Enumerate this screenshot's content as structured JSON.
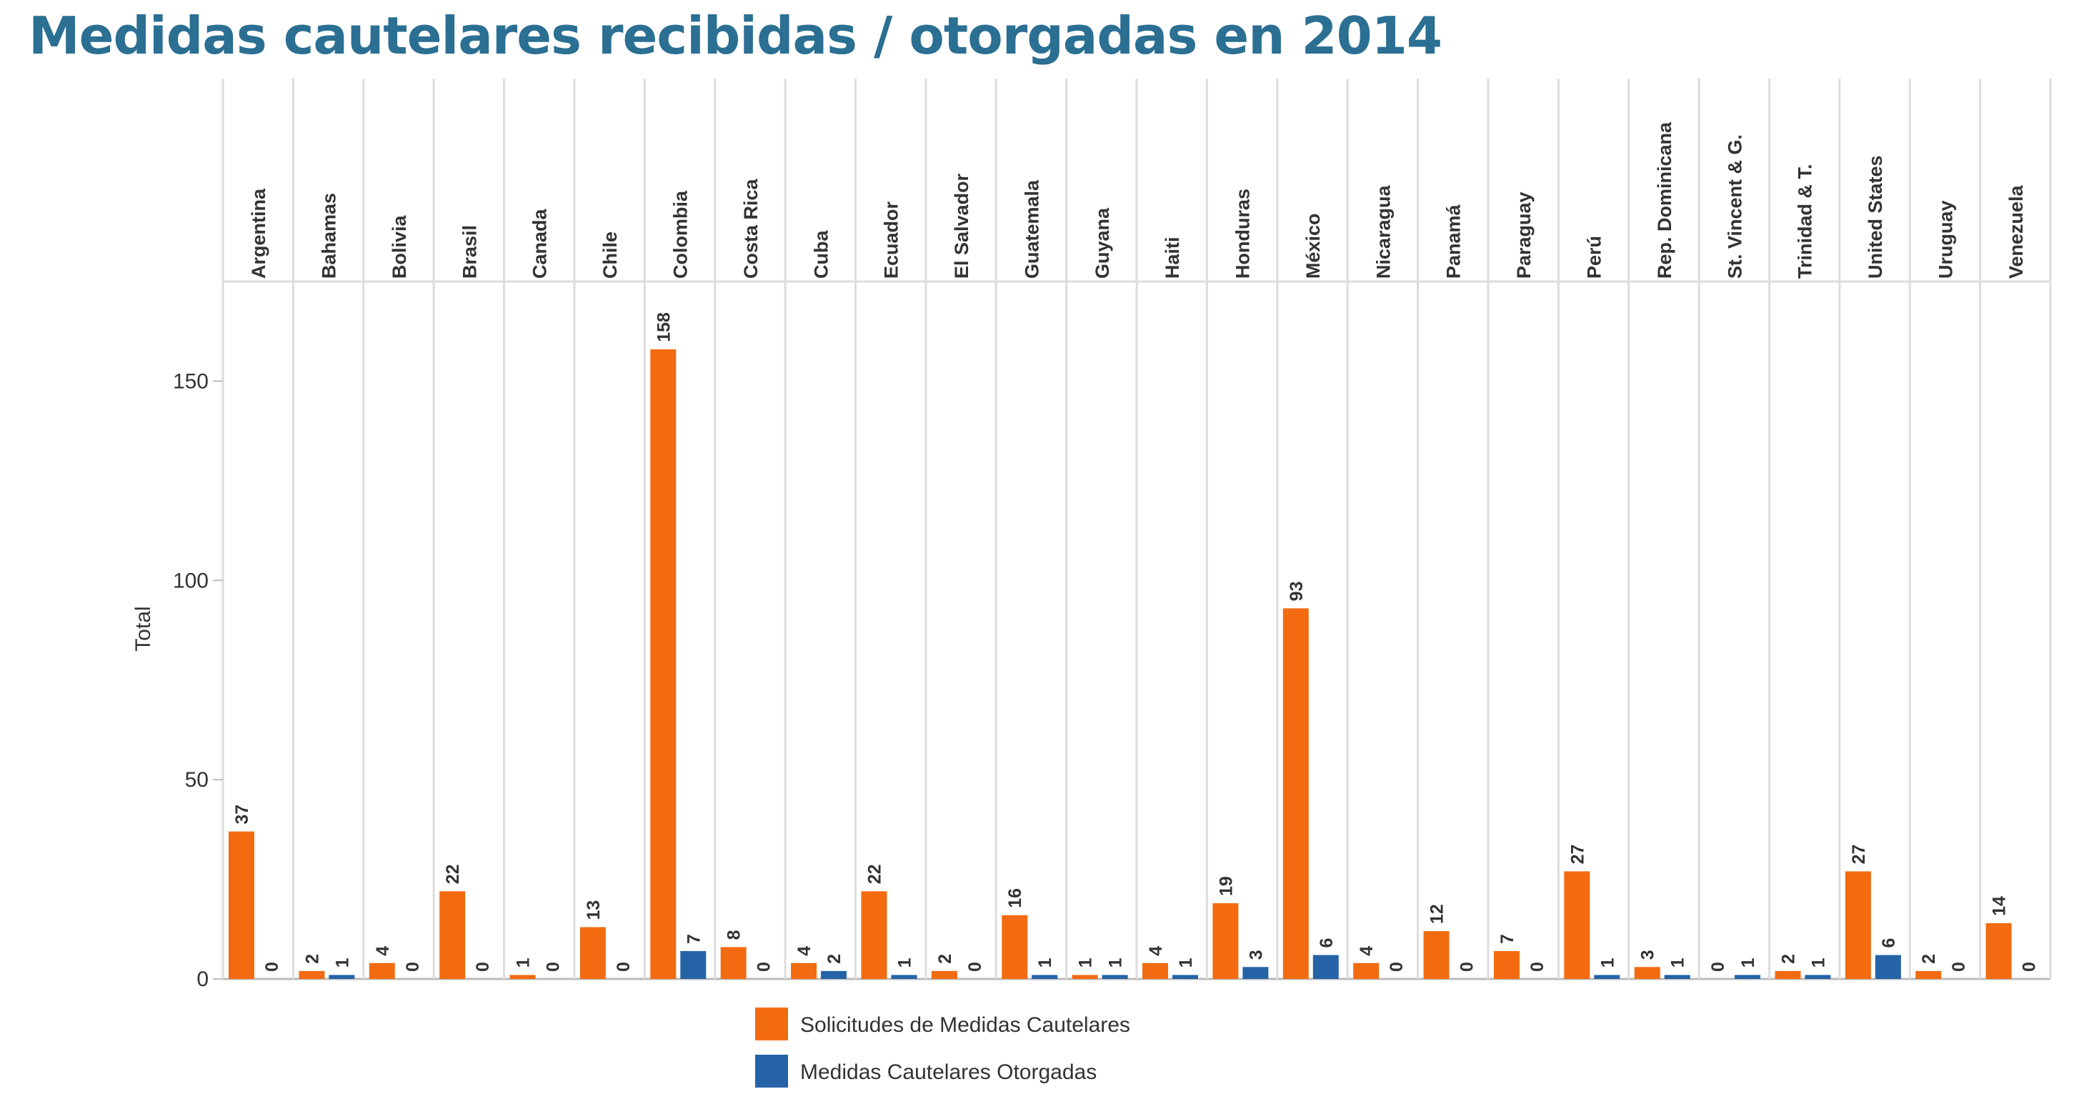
{
  "page": {
    "title": "Medidas cautelares recibidas / otorgadas en 2014"
  },
  "colors": {
    "solicitudes": "#f26b11",
    "otorgadas": "#2563a6",
    "title": "#2b6f93",
    "grid": "#dddddd"
  },
  "chart_data": {
    "type": "bar",
    "title": "Medidas cautelares recibidas / otorgadas en 2014",
    "xlabel": "",
    "ylabel": "Total",
    "ylim": [
      0,
      175
    ],
    "yticks": [
      0,
      50,
      100,
      150
    ],
    "grid": "vertical separators between countries",
    "legend_position": "bottom",
    "categories": [
      "Argentina",
      "Bahamas",
      "Bolivia",
      "Brasil",
      "Canada",
      "Chile",
      "Colombia",
      "Costa Rica",
      "Cuba",
      "Ecuador",
      "El Salvador",
      "Guatemala",
      "Guyana",
      "Haiti",
      "Honduras",
      "México",
      "Nicaragua",
      "Panamá",
      "Paraguay",
      "Perú",
      "Rep. Dominicana",
      "St. Vincent & G.",
      "Trinidad & T.",
      "United States",
      "Uruguay",
      "Venezuela"
    ],
    "series": [
      {
        "name": "Solicitudes de Medidas Cautelares",
        "color": "#f26b11",
        "values": [
          37,
          2,
          4,
          22,
          1,
          13,
          158,
          8,
          4,
          22,
          2,
          16,
          1,
          4,
          19,
          93,
          4,
          12,
          7,
          27,
          3,
          0,
          2,
          27,
          2,
          14
        ]
      },
      {
        "name": "Medidas Cautelares Otorgadas",
        "color": "#2563a6",
        "values": [
          0,
          1,
          0,
          0,
          0,
          0,
          7,
          0,
          2,
          1,
          0,
          1,
          1,
          1,
          3,
          6,
          0,
          0,
          0,
          1,
          1,
          1,
          1,
          6,
          0,
          0
        ]
      }
    ]
  }
}
